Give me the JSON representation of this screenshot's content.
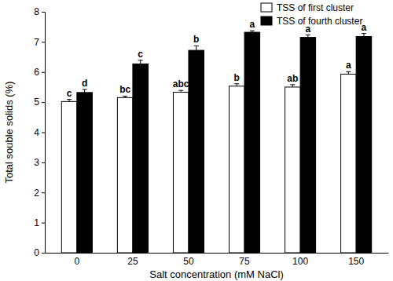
{
  "chart_data": {
    "type": "bar",
    "x_label": "Salt concentration (mM NaCl)",
    "y_label": "Total souble solids (%)",
    "categories": [
      "0",
      "25",
      "50",
      "75",
      "100",
      "150"
    ],
    "series": [
      {
        "name": "TSS of first cluster",
        "color": "#ffffff",
        "values": [
          5.02,
          5.15,
          5.33,
          5.53,
          5.5,
          5.93
        ],
        "errors": [
          0.07,
          0.05,
          0.06,
          0.08,
          0.08,
          0.08
        ],
        "significance": [
          "c",
          "bc",
          "abc",
          "b",
          "ab",
          "a"
        ]
      },
      {
        "name": "TSS of fourth cluster",
        "color": "#000000",
        "values": [
          5.32,
          6.27,
          6.72,
          7.32,
          7.15,
          7.18
        ],
        "errors": [
          0.1,
          0.12,
          0.15,
          0.05,
          0.08,
          0.1
        ],
        "significance": [
          "d",
          "c",
          "b",
          "a",
          "a",
          "a"
        ]
      }
    ],
    "ylim": [
      0,
      8
    ],
    "yticks": [
      0,
      1,
      2,
      3,
      4,
      5,
      6,
      7,
      8
    ],
    "grid": false,
    "legend": "upper right"
  }
}
